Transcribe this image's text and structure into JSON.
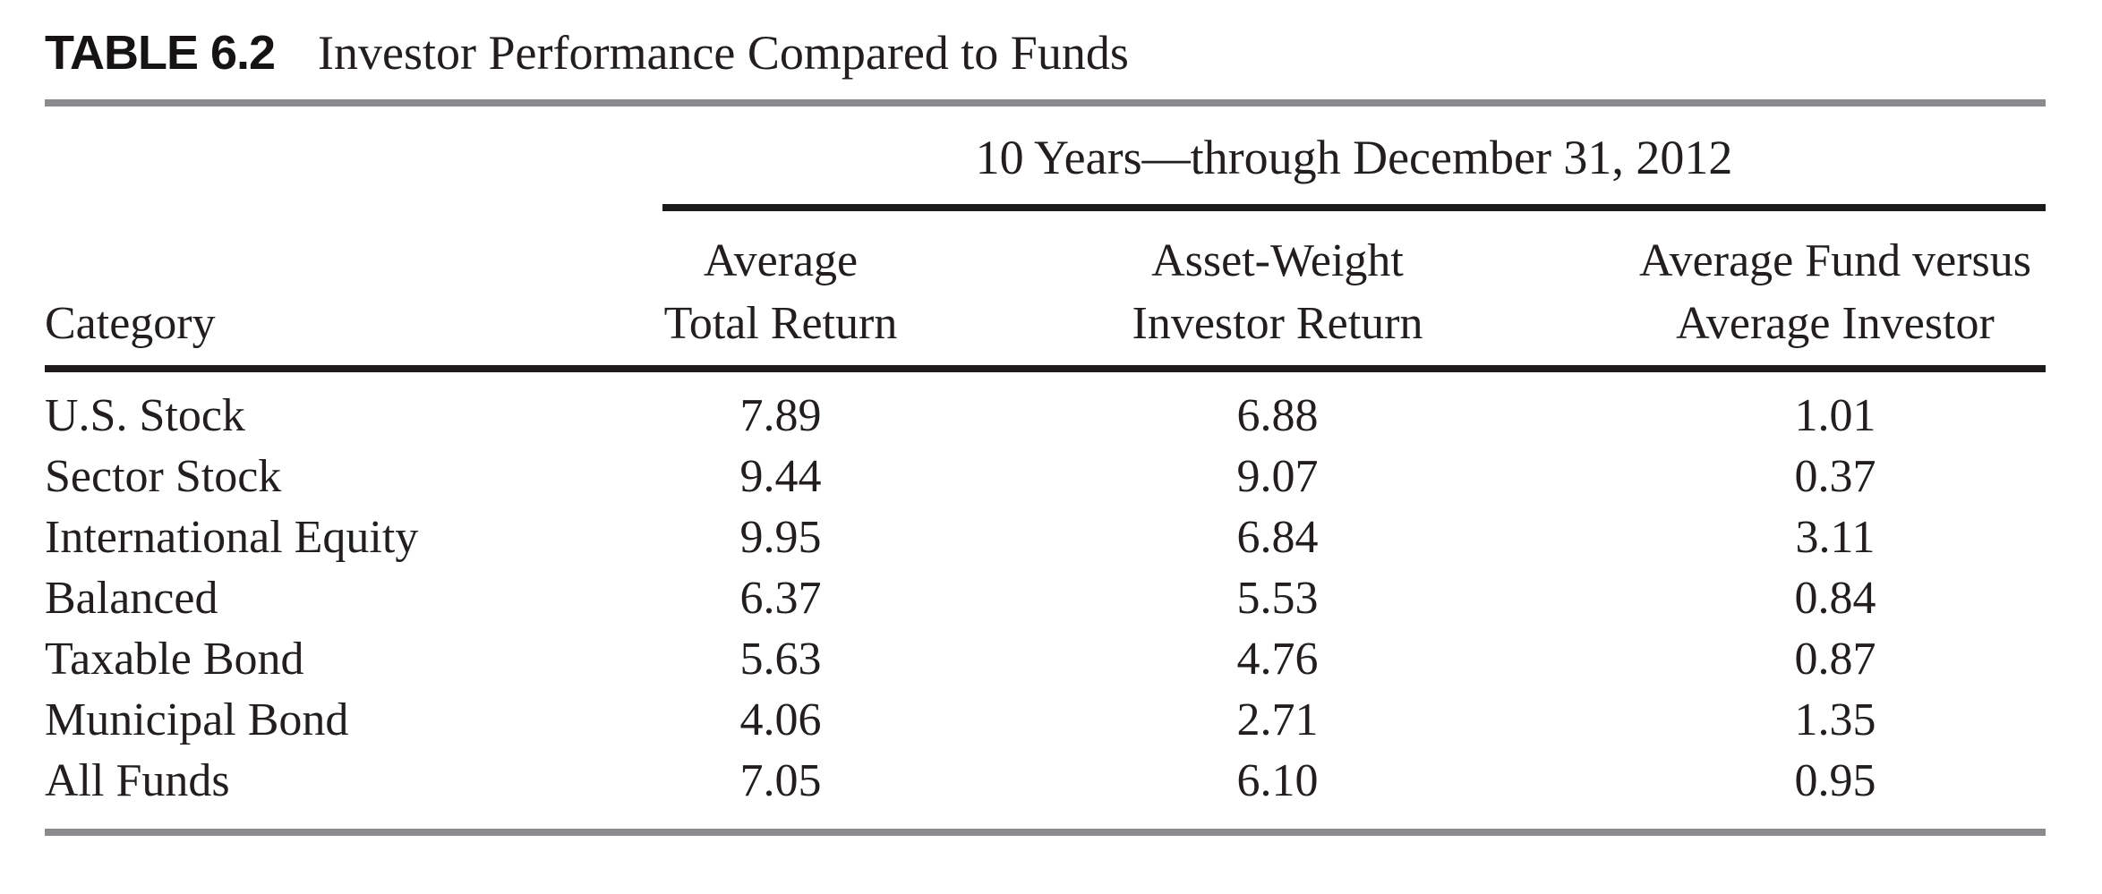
{
  "caption": {
    "label": "TABLE 6.2",
    "title": "Investor Performance Compared to Funds"
  },
  "table": {
    "span_header": "10 Years—through December 31, 2012",
    "columns": {
      "category": "Category",
      "avg_total_return_line1": "Average",
      "avg_total_return_line2": "Total Return",
      "asset_weight_line1": "Asset-Weight",
      "asset_weight_line2": "Investor Return",
      "fund_vs_investor_line1": "Average Fund versus",
      "fund_vs_investor_line2": "Average Investor"
    },
    "rows": [
      {
        "category": "U.S. Stock",
        "average_total_return": "7.89",
        "asset_weight_investor_return": "6.88",
        "average_fund_vs_average_investor": "1.01"
      },
      {
        "category": "Sector Stock",
        "average_total_return": "9.44",
        "asset_weight_investor_return": "9.07",
        "average_fund_vs_average_investor": "0.37"
      },
      {
        "category": "International Equity",
        "average_total_return": "9.95",
        "asset_weight_investor_return": "6.84",
        "average_fund_vs_average_investor": "3.11"
      },
      {
        "category": "Balanced",
        "average_total_return": "6.37",
        "asset_weight_investor_return": "5.53",
        "average_fund_vs_average_investor": "0.84"
      },
      {
        "category": "Taxable Bond",
        "average_total_return": "5.63",
        "asset_weight_investor_return": "4.76",
        "average_fund_vs_average_investor": "0.87"
      },
      {
        "category": "Municipal Bond",
        "average_total_return": "4.06",
        "asset_weight_investor_return": "2.71",
        "average_fund_vs_average_investor": "1.35"
      },
      {
        "category": "All Funds",
        "average_total_return": "7.05",
        "asset_weight_investor_return": "6.10",
        "average_fund_vs_average_investor": "0.95"
      }
    ]
  },
  "colors": {
    "text": "#221e1f",
    "rule_gray": "#8b8b8d",
    "rule_black": "#1c1a1b",
    "background": "#ffffff"
  }
}
